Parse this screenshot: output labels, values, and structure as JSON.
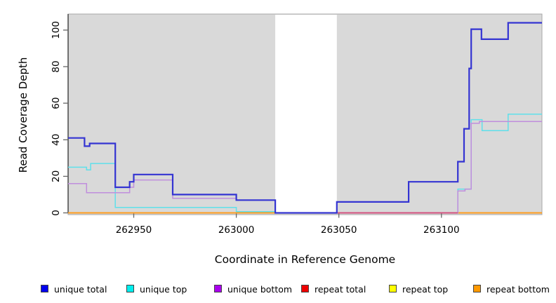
{
  "chart_data": {
    "type": "line",
    "subtype": "step-after-coverage-plot",
    "title": "",
    "xlabel": "Coordinate in Reference Genome",
    "ylabel": "Read Coverage Depth",
    "xlim": [
      262918,
      263149
    ],
    "ylim": [
      0,
      110
    ],
    "x_ticks": [
      262950,
      263000,
      263050,
      263100
    ],
    "y_ticks": [
      0,
      20,
      40,
      60,
      80,
      100
    ],
    "grid": "off",
    "legend_position": "bottom",
    "panel_background": "#d9d9d9",
    "panel_border_color": "#a8a8a8",
    "axis_color": "#222222",
    "tick_color": "#666666",
    "gap_region": {
      "x0": 263019,
      "x1": 263049,
      "color": "#ffffff"
    },
    "series": [
      {
        "name": "unique total",
        "color": "#3434d2",
        "legend_color": "#0000ee",
        "width": 2.2,
        "points": [
          [
            262918,
            41
          ],
          [
            262926,
            36.5
          ],
          [
            262928.5,
            38
          ],
          [
            262941,
            14
          ],
          [
            262948,
            17
          ],
          [
            262950,
            21
          ],
          [
            262969,
            10
          ],
          [
            263000,
            7
          ],
          [
            263019,
            0
          ],
          [
            263049,
            6
          ],
          [
            263084,
            17
          ],
          [
            263108,
            28
          ],
          [
            263111,
            46
          ],
          [
            263113.5,
            79
          ],
          [
            263114.5,
            100.5
          ],
          [
            263119.5,
            95
          ],
          [
            263132.5,
            104
          ]
        ]
      },
      {
        "name": "unique top",
        "color": "#5fe0ea",
        "legend_color": "#00eeee",
        "width": 1.5,
        "points": [
          [
            262918,
            25
          ],
          [
            262927,
            23.5
          ],
          [
            262929,
            27
          ],
          [
            262941,
            3
          ],
          [
            263000,
            0.7
          ],
          [
            263019,
            0
          ],
          [
            263108,
            13
          ],
          [
            263114.5,
            51
          ],
          [
            263119.8,
            45
          ],
          [
            263132.5,
            54
          ]
        ]
      },
      {
        "name": "unique bottom",
        "color": "#c08edd",
        "legend_color": "#aa00ee",
        "width": 1.5,
        "points": [
          [
            262918,
            16
          ],
          [
            262927,
            11
          ],
          [
            262948,
            14
          ],
          [
            262950,
            18
          ],
          [
            262969,
            8
          ],
          [
            263000,
            7
          ],
          [
            263019,
            0
          ],
          [
            263108,
            12
          ],
          [
            263111.5,
            13
          ],
          [
            263114.5,
            49
          ],
          [
            263118.5,
            50
          ]
        ]
      },
      {
        "name": "repeat total",
        "color": "#cc0000",
        "legend_color": "#ee0000",
        "width": 1,
        "points": [
          [
            262918,
            0
          ]
        ]
      },
      {
        "name": "repeat top",
        "color": "#eeee00",
        "legend_color": "#ffff00",
        "width": 1,
        "points": [
          [
            262918,
            0
          ]
        ]
      },
      {
        "name": "repeat bottom",
        "color": "#ff9d1e",
        "legend_color": "#ff9900",
        "width": 2,
        "points": [
          [
            262918,
            0
          ]
        ]
      }
    ],
    "overlay_segment": {
      "name": "zero-line-pink-segment",
      "x0": 263049,
      "x1": 263108,
      "y": 0,
      "color": "#d4517e",
      "width": 2
    },
    "z_order": [
      "repeat total",
      "repeat top",
      "repeat bottom",
      "unique top",
      "unique bottom",
      "__overlay__",
      "unique total"
    ]
  }
}
